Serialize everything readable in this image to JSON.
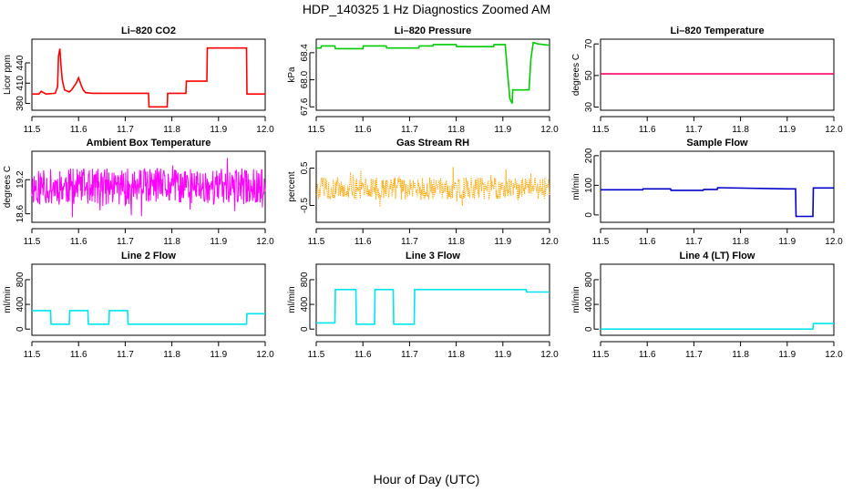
{
  "figure": {
    "title": "HDP_140325  1 Hz Diagnostics Zoomed AM",
    "xlabel": "Hour of Day (UTC)"
  },
  "chart_data": [
    {
      "type": "line",
      "title": "Li–820 CO2",
      "ylabel": "Licor ppm",
      "color": "#ff0000",
      "xlim": [
        11.5,
        12.0
      ],
      "ylim": [
        370,
        475
      ],
      "xticks": [
        11.5,
        11.6,
        11.7,
        11.8,
        11.9,
        12.0
      ],
      "yticks": [
        380,
        410,
        440
      ],
      "series": [
        {
          "x": [
            11.5,
            11.515,
            11.52,
            11.525,
            11.53,
            11.55,
            11.555,
            11.557,
            11.56,
            11.562,
            11.565,
            11.57,
            11.58,
            11.585,
            11.595,
            11.6,
            11.605,
            11.61,
            11.615,
            11.63,
            11.7,
            11.75,
            11.751,
            11.79,
            11.791,
            11.8,
            11.8,
            11.83,
            11.831,
            11.875,
            11.876,
            11.96,
            11.961,
            12.0
          ],
          "y": [
            394,
            394,
            398,
            396,
            394,
            395,
            405,
            450,
            461,
            440,
            415,
            400,
            397,
            400,
            410,
            418,
            408,
            400,
            396,
            395,
            395,
            395,
            375,
            375,
            395,
            395,
            395,
            395,
            413,
            413,
            462,
            462,
            394,
            394
          ]
        }
      ]
    },
    {
      "type": "line",
      "title": "Li–820 Pressure",
      "ylabel": "kPa",
      "color": "#00cc00",
      "xlim": [
        11.5,
        12.0
      ],
      "ylim": [
        67.55,
        68.6
      ],
      "xticks": [
        11.5,
        11.6,
        11.7,
        11.8,
        11.9,
        12.0
      ],
      "yticks": [
        67.6,
        68.0,
        68.4
      ],
      "ytick_labels": [
        "67.6",
        "68.0",
        "68.4"
      ],
      "series": [
        {
          "x": [
            11.5,
            11.51,
            11.511,
            11.54,
            11.541,
            11.6,
            11.601,
            11.65,
            11.651,
            11.72,
            11.721,
            11.75,
            11.751,
            11.8,
            11.801,
            11.88,
            11.881,
            11.905,
            11.91,
            11.915,
            11.92,
            11.921,
            11.955,
            11.956,
            11.96,
            11.965,
            11.975,
            12.0
          ],
          "y": [
            68.47,
            68.47,
            68.5,
            68.5,
            68.46,
            68.46,
            68.5,
            68.5,
            68.47,
            68.47,
            68.5,
            68.5,
            68.52,
            68.52,
            68.49,
            68.49,
            68.52,
            68.52,
            68.1,
            67.72,
            67.65,
            67.85,
            67.85,
            67.85,
            68.3,
            68.55,
            68.53,
            68.51
          ]
        }
      ]
    },
    {
      "type": "line",
      "title": "Li–820 Temperature",
      "ylabel": "degrees C",
      "color": "#ff0066",
      "xlim": [
        11.5,
        12.0
      ],
      "ylim": [
        28,
        73
      ],
      "xticks": [
        11.5,
        11.6,
        11.7,
        11.8,
        11.9,
        12.0
      ],
      "yticks": [
        30,
        50,
        70
      ],
      "series": [
        {
          "x": [
            11.5,
            12.0
          ],
          "y": [
            51,
            51
          ]
        }
      ]
    },
    {
      "type": "line",
      "title": "Ambient Box Temperature",
      "ylabel": "degrees C",
      "color": "#ff00ff",
      "xlim": [
        11.5,
        12.0
      ],
      "ylim": [
        18.45,
        19.7
      ],
      "xticks": [
        11.5,
        11.6,
        11.7,
        11.8,
        11.9,
        12.0
      ],
      "yticks": [
        18.6,
        19.2
      ],
      "noise": {
        "center": 19.08,
        "amplitude": 0.32,
        "spike": 0.55,
        "points": 500,
        "seed": 11
      }
    },
    {
      "type": "line",
      "title": "Gas Stream RH",
      "ylabel": "percent",
      "color": "#ffa500",
      "xlim": [
        11.5,
        12.0
      ],
      "ylim": [
        -0.95,
        0.95
      ],
      "xticks": [
        11.5,
        11.6,
        11.7,
        11.8,
        11.9,
        12.0
      ],
      "yticks": [
        -0.5,
        0.5
      ],
      "noise": {
        "center": -0.05,
        "amplitude": 0.3,
        "spike": 0.62,
        "points": 450,
        "seed": 5,
        "dotted": true
      }
    },
    {
      "type": "line",
      "title": "Sample Flow",
      "ylabel": "ml/min",
      "color": "#0000cc",
      "xlim": [
        11.5,
        12.0
      ],
      "ylim": [
        -25,
        215
      ],
      "xticks": [
        11.5,
        11.6,
        11.7,
        11.8,
        11.9,
        12.0
      ],
      "yticks": [
        0,
        100,
        200
      ],
      "series": [
        {
          "x": [
            11.5,
            11.59,
            11.591,
            11.65,
            11.651,
            11.72,
            11.721,
            11.75,
            11.751,
            11.9,
            11.918,
            11.919,
            11.955,
            11.956,
            12.0
          ],
          "y": [
            85,
            85,
            88,
            88,
            83,
            83,
            86,
            86,
            92,
            88,
            88,
            -5,
            -5,
            91,
            91
          ]
        }
      ]
    },
    {
      "type": "line",
      "title": "Line 2 Flow",
      "ylabel": "ml/min",
      "color": "#00e5ee",
      "xlim": [
        11.5,
        12.0
      ],
      "ylim": [
        -100,
        1050
      ],
      "xticks": [
        11.5,
        11.6,
        11.7,
        11.8,
        11.9,
        12.0
      ],
      "yticks": [
        0,
        400,
        800
      ],
      "series": [
        {
          "x": [
            11.5,
            11.54,
            11.541,
            11.58,
            11.581,
            11.62,
            11.621,
            11.665,
            11.666,
            11.705,
            11.706,
            11.96,
            11.961,
            12.0
          ],
          "y": [
            300,
            300,
            80,
            80,
            300,
            300,
            80,
            80,
            300,
            300,
            80,
            80,
            250,
            250
          ]
        }
      ]
    },
    {
      "type": "line",
      "title": "Line 3 Flow",
      "ylabel": "ml/min",
      "color": "#00e5ee",
      "xlim": [
        11.5,
        12.0
      ],
      "ylim": [
        -100,
        1050
      ],
      "xticks": [
        11.5,
        11.6,
        11.7,
        11.8,
        11.9,
        12.0
      ],
      "yticks": [
        0,
        400,
        800
      ],
      "series": [
        {
          "x": [
            11.5,
            11.54,
            11.541,
            11.585,
            11.586,
            11.625,
            11.626,
            11.665,
            11.666,
            11.71,
            11.711,
            11.95,
            11.951,
            12.0
          ],
          "y": [
            100,
            100,
            640,
            640,
            80,
            80,
            640,
            640,
            80,
            80,
            640,
            640,
            600,
            600
          ]
        }
      ]
    },
    {
      "type": "line",
      "title": "Line 4 (LT) Flow",
      "ylabel": "ml/min",
      "color": "#00e5ee",
      "xlim": [
        11.5,
        12.0
      ],
      "ylim": [
        -100,
        1050
      ],
      "xticks": [
        11.5,
        11.6,
        11.7,
        11.8,
        11.9,
        12.0
      ],
      "yticks": [
        0,
        400,
        800
      ],
      "series": [
        {
          "x": [
            11.5,
            11.955,
            11.956,
            12.0
          ],
          "y": [
            0,
            0,
            90,
            90
          ]
        }
      ]
    }
  ]
}
